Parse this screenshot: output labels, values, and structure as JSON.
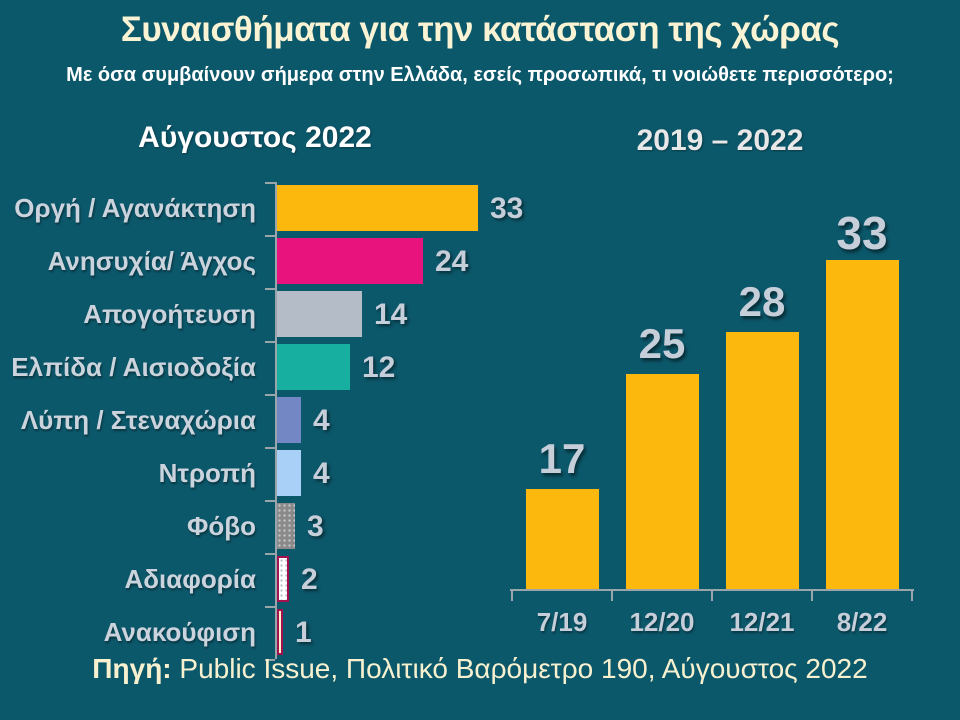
{
  "slide": {
    "title": "Συναισθήματα για την κατάσταση της χώρας",
    "subtitle": "Με όσα συμβαίνουν σήμερα στην Ελλάδα, εσείς προσωπικά, τι νοιώθετε περισσότερο;",
    "source_label": "Πηγή:",
    "source_text": " Public Issue, Πολιτικό Βαρόμετρο 190, Αύγουστος 2022",
    "colors": {
      "background": "#0C586B",
      "title": "#FAF3D4",
      "subtitle": "#FFFFFF",
      "axis": "#99A5AB",
      "category_labels": "#CBD3DD",
      "value_labels": "#C6CEDA",
      "source": "#F8F1D0"
    }
  },
  "chart_data": [
    {
      "type": "bar",
      "orientation": "horizontal",
      "title": "Αύγουστος 2022",
      "categories": [
        "Οργή / Αγανάκτηση",
        "Ανησυχία/ Άγχος",
        "Απογοήτευση",
        "Ελπίδα / Αισιοδοξία",
        "Λύπη / Στεναχώρια",
        "Ντροπή",
        "Φόβο",
        "Αδιαφορία",
        "Ανακούφιση"
      ],
      "values": [
        33,
        24,
        14,
        12,
        4,
        4,
        3,
        2,
        1
      ],
      "bar_styles": [
        {
          "color": "#FDB80E"
        },
        {
          "color": "#E8137D"
        },
        {
          "color": "#B4BCC8"
        },
        {
          "color": "#17B0A0"
        },
        {
          "color": "#7387C4"
        },
        {
          "color": "#A9D1F7"
        },
        {
          "color": "#8A8A8A",
          "pattern": "dots-light"
        },
        {
          "color": "#FFFFFF",
          "pattern": "dots-dark",
          "border": "#A3114E"
        },
        {
          "color": "#FFF2CC",
          "border": "#A3114E"
        }
      ],
      "xlim": [
        0,
        40
      ],
      "grid": false,
      "value_labels_shown": true,
      "xlabel": "",
      "ylabel": ""
    },
    {
      "type": "bar",
      "orientation": "vertical",
      "title": "2019 – 2022",
      "categories": [
        "7/19",
        "12/20",
        "12/21",
        "8/22"
      ],
      "values": [
        17,
        25,
        28,
        33
      ],
      "bar_color": "#FDB80E",
      "ylim": [
        10,
        35
      ],
      "grid": false,
      "value_labels_shown": true,
      "xlabel": "",
      "ylabel": ""
    }
  ]
}
